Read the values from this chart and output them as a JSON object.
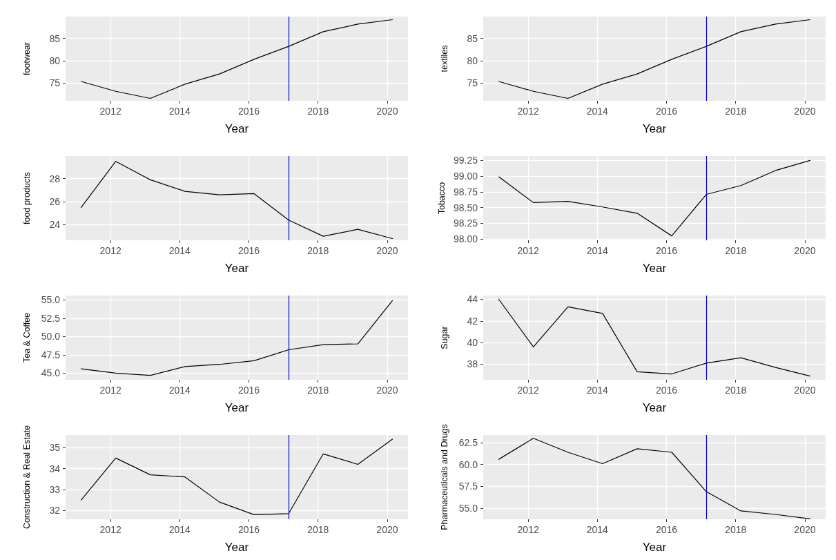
{
  "chart_data": [
    {
      "type": "line",
      "ylabel": "footwear",
      "xlabel": "Year",
      "x": [
        2011.15,
        2012.15,
        2013.15,
        2014.15,
        2015.15,
        2016.15,
        2017.15,
        2018.15,
        2019.15,
        2020.15
      ],
      "values": [
        75.3,
        73.1,
        71.5,
        74.7,
        77.0,
        80.3,
        83.2,
        86.5,
        88.2,
        89.2
      ],
      "color": "#000000",
      "xlim": [
        2010.7,
        2020.6
      ],
      "xticks": [
        2012,
        2014,
        2016,
        2018,
        2020
      ],
      "ylim": [
        70.96,
        89.9
      ],
      "yticks": [
        75,
        80,
        85
      ],
      "grid": true,
      "ref_lines": [
        {
          "axis": "x",
          "value": 2017.15,
          "color": "#0000cc"
        }
      ]
    },
    {
      "type": "line",
      "ylabel": "textiles",
      "xlabel": "Year",
      "x": [
        2011.15,
        2012.15,
        2013.15,
        2014.15,
        2015.15,
        2016.15,
        2017.15,
        2018.15,
        2019.15,
        2020.15
      ],
      "values": [
        75.3,
        73.1,
        71.5,
        74.7,
        77.0,
        80.3,
        83.2,
        86.5,
        88.2,
        89.2
      ],
      "color": "#000000",
      "xlim": [
        2010.7,
        2020.6
      ],
      "xticks": [
        2012,
        2014,
        2016,
        2018,
        2020
      ],
      "ylim": [
        70.96,
        89.9
      ],
      "yticks": [
        75,
        80,
        85
      ],
      "grid": true,
      "ref_lines": [
        {
          "axis": "x",
          "value": 2017.15,
          "color": "#0000cc"
        }
      ]
    },
    {
      "type": "line",
      "ylabel": "food products",
      "xlabel": "Year",
      "x": [
        2011.15,
        2012.15,
        2013.15,
        2014.15,
        2015.15,
        2016.15,
        2017.15,
        2018.15,
        2019.15,
        2020.15
      ],
      "values": [
        25.5,
        29.5,
        27.9,
        26.9,
        26.6,
        26.7,
        24.4,
        23.0,
        23.6,
        22.8
      ],
      "color": "#000000",
      "xlim": [
        2010.7,
        2020.6
      ],
      "xticks": [
        2012,
        2014,
        2016,
        2018,
        2020
      ],
      "ylim": [
        22.65,
        29.96
      ],
      "yticks": [
        24,
        26,
        28
      ],
      "grid": true,
      "ref_lines": [
        {
          "axis": "x",
          "value": 2017.15,
          "color": "#0000cc"
        }
      ]
    },
    {
      "type": "line",
      "ylabel": "Tobacco",
      "xlabel": "Year",
      "x": [
        2011.15,
        2012.15,
        2013.15,
        2014.15,
        2015.15,
        2016.15,
        2017.15,
        2018.15,
        2019.15,
        2020.15
      ],
      "values": [
        98.99,
        98.58,
        98.6,
        98.51,
        98.41,
        98.05,
        98.71,
        98.85,
        99.09,
        99.25
      ],
      "color": "#000000",
      "xlim": [
        2010.7,
        2020.6
      ],
      "xticks": [
        2012,
        2014,
        2016,
        2018,
        2020
      ],
      "ylim": [
        97.98,
        99.32
      ],
      "yticks": [
        {
          "value": 98,
          "label": "98.00"
        },
        98.25,
        {
          "value": 98.5,
          "label": "98.50"
        },
        98.75,
        {
          "value": 99,
          "label": "99.00"
        },
        99.25
      ],
      "grid": true,
      "ref_lines": [
        {
          "axis": "x",
          "value": 2017.15,
          "color": "#0000cc"
        }
      ]
    },
    {
      "type": "line",
      "ylabel": "Tea & Coffee",
      "xlabel": "Year",
      "x": [
        2011.15,
        2012.15,
        2013.15,
        2014.15,
        2015.15,
        2016.15,
        2017.15,
        2018.15,
        2019.15,
        2020.15
      ],
      "values": [
        45.6,
        45.0,
        44.7,
        45.9,
        46.2,
        46.7,
        48.2,
        48.9,
        49.0,
        54.9
      ],
      "color": "#000000",
      "xlim": [
        2010.7,
        2020.6
      ],
      "xticks": [
        2012,
        2014,
        2016,
        2018,
        2020
      ],
      "ylim": [
        44.1,
        55.6
      ],
      "yticks": [
        {
          "value": 45,
          "label": "45.0"
        },
        47.5,
        {
          "value": 50,
          "label": "50.0"
        },
        52.5,
        {
          "value": 55,
          "label": "55.0"
        }
      ],
      "grid": true,
      "ref_lines": [
        {
          "axis": "x",
          "value": 2017.15,
          "color": "#0000cc"
        }
      ]
    },
    {
      "type": "line",
      "ylabel": "Sugar",
      "xlabel": "Year",
      "x": [
        2011.15,
        2012.15,
        2013.15,
        2014.15,
        2015.15,
        2016.15,
        2017.15,
        2018.15,
        2019.15,
        2020.15
      ],
      "values": [
        44.0,
        39.6,
        43.3,
        42.7,
        37.3,
        37.1,
        38.1,
        38.6,
        37.7,
        36.9
      ],
      "color": "#000000",
      "xlim": [
        2010.7,
        2020.6
      ],
      "xticks": [
        2012,
        2014,
        2016,
        2018,
        2020
      ],
      "ylim": [
        36.56,
        44.35
      ],
      "yticks": [
        38,
        40,
        42,
        44
      ],
      "grid": true,
      "ref_lines": [
        {
          "axis": "x",
          "value": 2017.15,
          "color": "#0000cc"
        }
      ]
    },
    {
      "type": "line",
      "ylabel": "Construction & Real Estate",
      "xlabel": "Year",
      "x": [
        2011.15,
        2012.15,
        2013.15,
        2014.15,
        2015.15,
        2016.15,
        2017.15,
        2018.15,
        2019.15,
        2020.15
      ],
      "values": [
        32.5,
        34.5,
        33.7,
        33.6,
        32.4,
        31.8,
        31.85,
        34.7,
        34.2,
        35.4
      ],
      "color": "#000000",
      "xlim": [
        2010.7,
        2020.6
      ],
      "xticks": [
        2012,
        2014,
        2016,
        2018,
        2020
      ],
      "ylim": [
        31.58,
        35.6
      ],
      "yticks": [
        32,
        33,
        34,
        35
      ],
      "grid": true,
      "ref_lines": [
        {
          "axis": "x",
          "value": 2017.15,
          "color": "#0000cc"
        }
      ]
    },
    {
      "type": "line",
      "ylabel": "Pharmaceuticals and Drugs",
      "xlabel": "Year",
      "x": [
        2011.15,
        2012.15,
        2013.15,
        2014.15,
        2015.15,
        2016.15,
        2017.15,
        2018.15,
        2019.15,
        2020.15
      ],
      "values": [
        60.6,
        63.0,
        61.4,
        60.1,
        61.8,
        61.4,
        56.9,
        54.7,
        54.3,
        53.8
      ],
      "color": "#000000",
      "xlim": [
        2010.7,
        2020.6
      ],
      "xticks": [
        2012,
        2014,
        2016,
        2018,
        2020
      ],
      "ylim": [
        53.75,
        63.37
      ],
      "yticks": [
        {
          "value": 55,
          "label": "55.0"
        },
        57.5,
        {
          "value": 60,
          "label": "60.0"
        },
        62.5
      ],
      "grid": true,
      "ref_lines": [
        {
          "axis": "x",
          "value": 2017.15,
          "color": "#0000cc"
        }
      ]
    }
  ]
}
